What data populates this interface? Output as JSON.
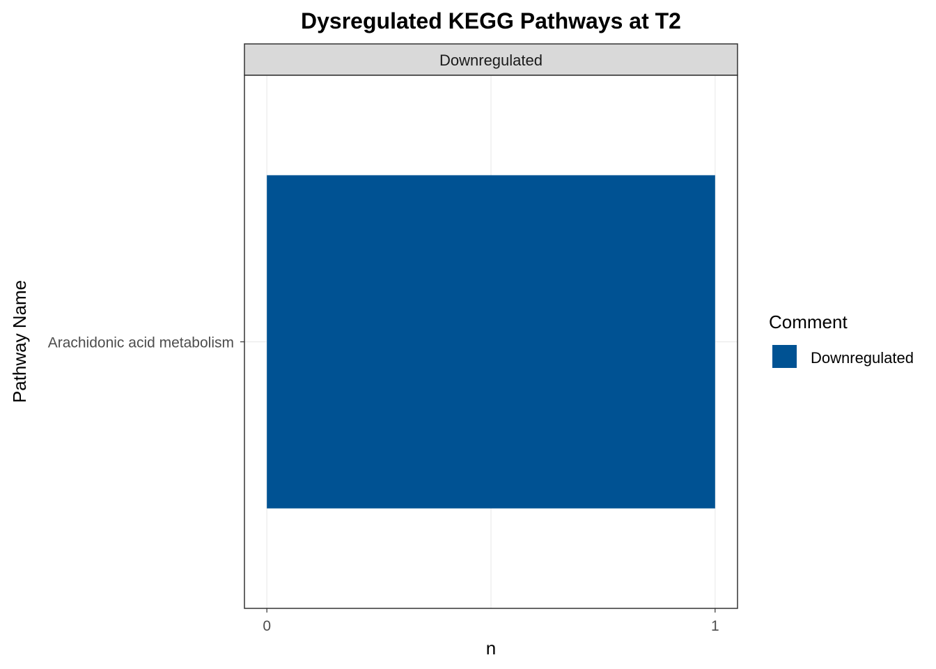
{
  "chart_data": {
    "type": "bar",
    "orientation": "horizontal",
    "title": "Dysregulated KEGG Pathways at T2",
    "facet": "Downregulated",
    "categories": [
      "Arachidonic acid metabolism"
    ],
    "series": [
      {
        "name": "Downregulated",
        "values": [
          1
        ],
        "color": "#005293"
      }
    ],
    "xlabel": "n",
    "ylabel": "Pathway Name",
    "xlim": [
      -0.05,
      1.05
    ],
    "xticks": [
      "0",
      "1"
    ],
    "grid": true,
    "legend": {
      "title": "Comment",
      "position": "right",
      "items": [
        {
          "label": "Downregulated",
          "color": "#005293"
        }
      ]
    }
  }
}
